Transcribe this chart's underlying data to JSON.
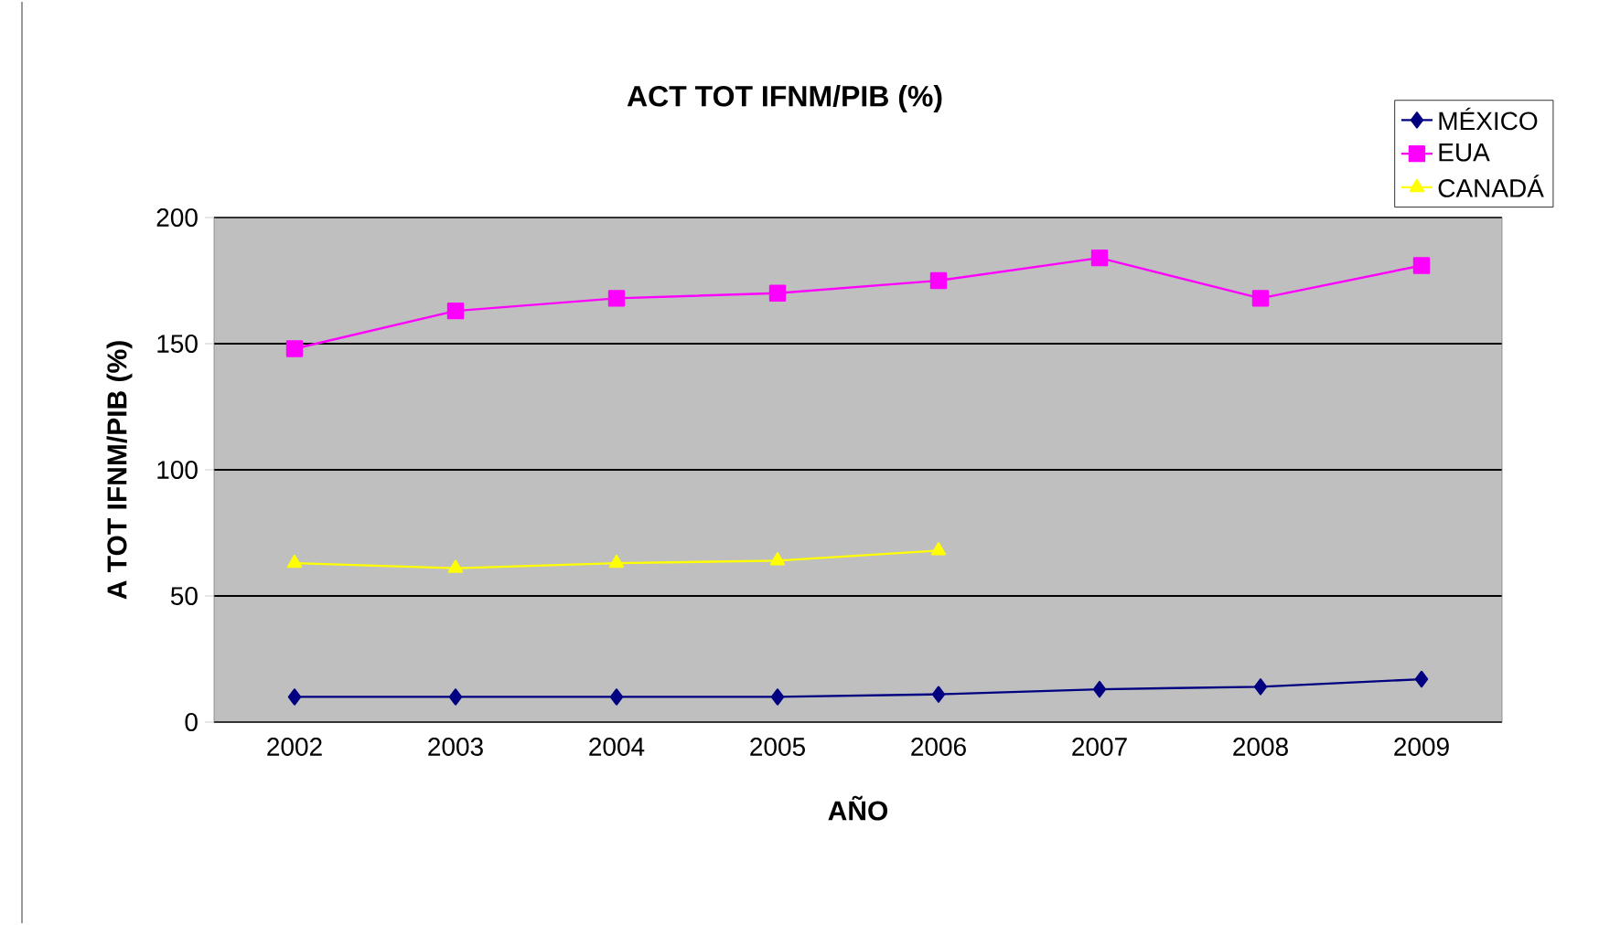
{
  "chart_data": {
    "type": "line",
    "title": "ACT TOT IFNM/PIB (%)",
    "xlabel": "AÑO",
    "ylabel": "A TOT IFNM/PIB (%)",
    "categories": [
      "2002",
      "2003",
      "2004",
      "2005",
      "2006",
      "2007",
      "2008",
      "2009"
    ],
    "series": [
      {
        "name": "MÉXICO",
        "color": "#000080",
        "marker": "diamond",
        "values": [
          10,
          10,
          10,
          10,
          11,
          13,
          14,
          17
        ]
      },
      {
        "name": "EUA",
        "color": "#ff00ff",
        "marker": "square",
        "values": [
          148,
          163,
          168,
          170,
          175,
          184,
          168,
          181
        ]
      },
      {
        "name": "CANADÁ",
        "color": "#ffff00",
        "marker": "triangle",
        "values": [
          63,
          61,
          63,
          64,
          68,
          null,
          null,
          null
        ]
      }
    ],
    "ylim": [
      0,
      200
    ],
    "yticks": [
      0,
      50,
      100,
      150,
      200
    ],
    "grid": "y",
    "legend": "top right"
  }
}
